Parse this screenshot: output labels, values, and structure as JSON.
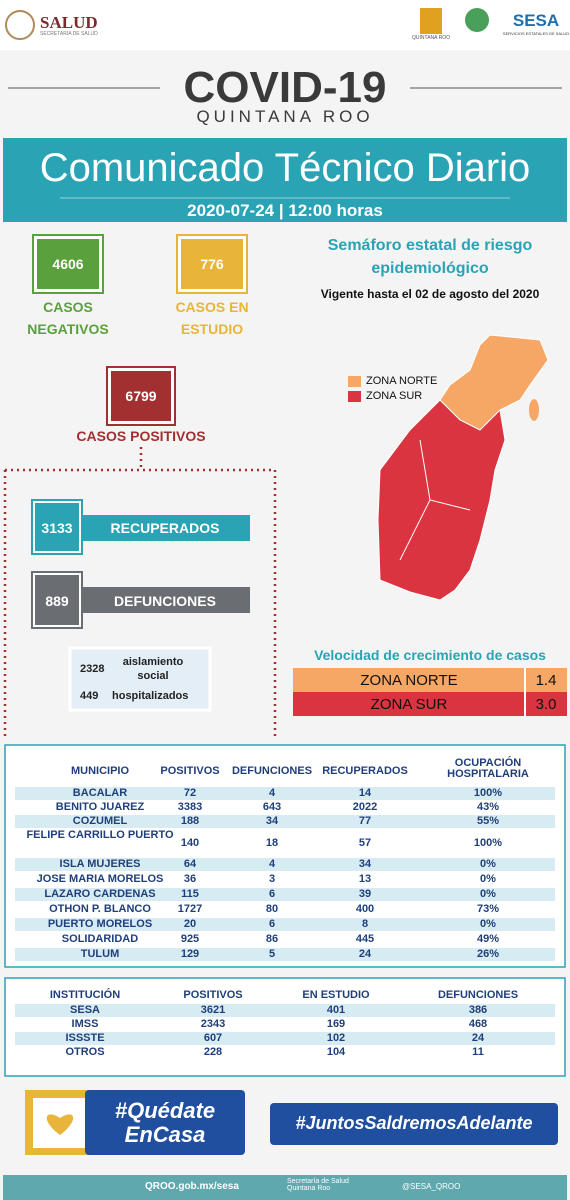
{
  "header": {
    "salud": "SALUD",
    "salud_sub": "SECRETARÍA DE SALUD",
    "qroo": "QUINTANA ROO",
    "sesa": "SESA",
    "sesa_sub": "SERVICIOS ESTATALES DE SALUD"
  },
  "title": "COVID-19",
  "subtitle": "QUINTANA ROO",
  "banner": {
    "title": "Comunicado Técnico Diario",
    "date": "2020-07-24 | 12:00 horas"
  },
  "cases": {
    "negative": {
      "value": "4606",
      "label": [
        "CASOS",
        "NEGATIVOS"
      ]
    },
    "study": {
      "value": "776",
      "label": [
        "CASOS EN",
        "ESTUDIO"
      ]
    },
    "positive": {
      "value": "6799",
      "label": "CASOS POSITIVOS"
    },
    "recovered": {
      "value": "3133",
      "label": "RECUPERADOS"
    },
    "deaths": {
      "value": "889",
      "label": "DEFUNCIONES"
    },
    "isolation": {
      "value": "2328",
      "label": [
        "aislamiento",
        "social"
      ]
    },
    "hospital": {
      "value": "449",
      "label": "hospitalizados"
    }
  },
  "semaforo": {
    "title": [
      "Semáforo estatal de riesgo",
      "epidemiológico"
    ],
    "vigente": "Vigente hasta el 02 de agosto del 2020",
    "legend": [
      "ZONA NORTE",
      "ZONA SUR"
    ]
  },
  "velocity": {
    "title": "Velocidad de crecimiento de casos",
    "rows": [
      [
        "ZONA NORTE",
        "1.4"
      ],
      [
        "ZONA SUR",
        "3.0"
      ]
    ]
  },
  "municipal": {
    "header": [
      "MUNICIPIO",
      "POSITIVOS",
      "DEFUNCIONES",
      "RECUPERADOS",
      "OCUPACIÓN HOSPITALARIA"
    ],
    "rows": [
      [
        "BACALAR",
        "72",
        "4",
        "14",
        "100%"
      ],
      [
        "BENITO JUAREZ",
        "3383",
        "643",
        "2022",
        "43%"
      ],
      [
        "COZUMEL",
        "188",
        "34",
        "77",
        "55%"
      ],
      [
        "FELIPE CARRILLO PUERTO",
        "140",
        "18",
        "57",
        "100%"
      ],
      [
        "ISLA MUJERES",
        "64",
        "4",
        "34",
        "0%"
      ],
      [
        "JOSE MARIA MORELOS",
        "36",
        "3",
        "13",
        "0%"
      ],
      [
        "LAZARO CARDENAS",
        "115",
        "6",
        "39",
        "0%"
      ],
      [
        "OTHON P. BLANCO",
        "1727",
        "80",
        "400",
        "73%"
      ],
      [
        "PUERTO MORELOS",
        "20",
        "6",
        "8",
        "0%"
      ],
      [
        "SOLIDARIDAD",
        "925",
        "86",
        "445",
        "49%"
      ],
      [
        "TULUM",
        "129",
        "5",
        "24",
        "26%"
      ]
    ]
  },
  "institution": {
    "header": [
      "INSTITUCIÓN",
      "POSITIVOS",
      "EN ESTUDIO",
      "DEFUNCIONES"
    ],
    "rows": [
      [
        "SESA",
        "3621",
        "401",
        "386"
      ],
      [
        "IMSS",
        "2343",
        "169",
        "468"
      ],
      [
        "ISSSTE",
        "607",
        "102",
        "24"
      ],
      [
        "OTROS",
        "228",
        "104",
        "11"
      ]
    ]
  },
  "footer": {
    "stay": [
      "#Quédate",
      "EnCasa"
    ],
    "together": "#JuntosSaldremosAdelante",
    "web": "QROO.gob.mx/sesa",
    "fb": "Secretaría de Salud Quintana Roo",
    "tw": "@SESA_QROO"
  }
}
